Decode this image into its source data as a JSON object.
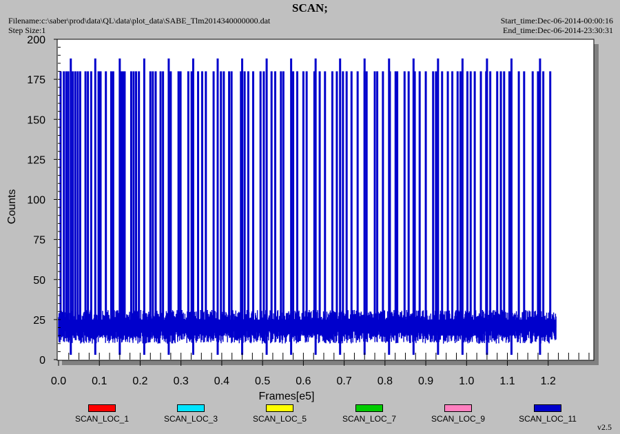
{
  "header": {
    "title": "SCAN;",
    "filename": "Filename:c:\\saber\\prod\\data\\QL\\data\\plot_data\\SABE_Tlm2014340000000.dat",
    "step_size": "Step Size:1",
    "start_time": "Start_time:Dec-06-2014-00:00:16",
    "end_time": "End_time:Dec-06-2014-23:30:31",
    "version": "v2.5"
  },
  "chart_data": {
    "type": "line",
    "title": "SCAN;",
    "xlabel": "Frames[e5]",
    "ylabel": "Counts",
    "xlim": [
      0.0,
      1.3
    ],
    "ylim": [
      0,
      200
    ],
    "x_ticks": [
      0.0,
      0.1,
      0.2,
      0.3,
      0.4,
      0.5,
      0.6,
      0.7,
      0.8,
      0.9,
      1.0,
      1.1,
      1.2
    ],
    "x_tick_labels": [
      "0.0",
      "0.1",
      "0.2",
      "0.3",
      "0.4",
      "0.5",
      "0.6",
      "0.7",
      "0.8",
      "0.9",
      "1.0",
      "1.1",
      "1.2"
    ],
    "y_ticks": [
      0,
      25,
      50,
      75,
      100,
      125,
      150,
      175,
      200
    ],
    "y_tick_labels": [
      "0",
      "25",
      "50",
      "75",
      "100",
      "125",
      "150",
      "175",
      "200"
    ],
    "grid": false,
    "legend_placement": "bottom",
    "series": [
      {
        "name": "SCAN_LOC_1",
        "color": "#ff0000",
        "values": []
      },
      {
        "name": "SCAN_LOC_3",
        "color": "#00e5ff",
        "values": []
      },
      {
        "name": "SCAN_LOC_5",
        "color": "#ffff00",
        "values": []
      },
      {
        "name": "SCAN_LOC_7",
        "color": "#00cc00",
        "values": []
      },
      {
        "name": "SCAN_LOC_9",
        "color": "#ff80c0",
        "values": []
      },
      {
        "name": "SCAN_LOC_11",
        "color": "#0000cc",
        "x_end": 1.22,
        "baseline_range": [
          10,
          31
        ],
        "spikes_180": [
          0.005,
          0.013,
          0.019,
          0.024,
          0.035,
          0.041,
          0.047,
          0.053,
          0.066,
          0.072,
          0.08,
          0.098,
          0.103,
          0.116,
          0.129,
          0.134,
          0.152,
          0.157,
          0.162,
          0.178,
          0.184,
          0.19,
          0.197,
          0.225,
          0.231,
          0.238,
          0.25,
          0.256,
          0.275,
          0.294,
          0.299,
          0.318,
          0.326,
          0.342,
          0.352,
          0.361,
          0.38,
          0.398,
          0.405,
          0.418,
          0.424,
          0.447,
          0.456,
          0.465,
          0.477,
          0.495,
          0.503,
          0.522,
          0.531,
          0.545,
          0.551,
          0.575,
          0.585,
          0.6,
          0.608,
          0.627,
          0.64,
          0.653,
          0.671,
          0.682,
          0.697,
          0.706,
          0.718,
          0.733,
          0.75,
          0.755,
          0.775,
          0.781,
          0.795,
          0.812,
          0.826,
          0.83,
          0.848,
          0.858,
          0.873,
          0.885,
          0.9,
          0.918,
          0.925,
          0.94,
          0.954,
          0.965,
          0.978,
          0.985,
          1.002,
          1.01,
          1.02,
          1.035,
          1.048,
          1.058,
          1.075,
          1.084,
          1.092,
          1.105,
          1.128,
          1.141,
          1.162,
          1.175,
          1.188,
          1.205
        ],
        "spikes_188": [
          0.03,
          0.09,
          0.15,
          0.21,
          0.27,
          0.33,
          0.39,
          0.45,
          0.51,
          0.57,
          0.63,
          0.69,
          0.75,
          0.81,
          0.87,
          0.93,
          0.99,
          1.05,
          1.11,
          1.18
        ]
      }
    ]
  }
}
